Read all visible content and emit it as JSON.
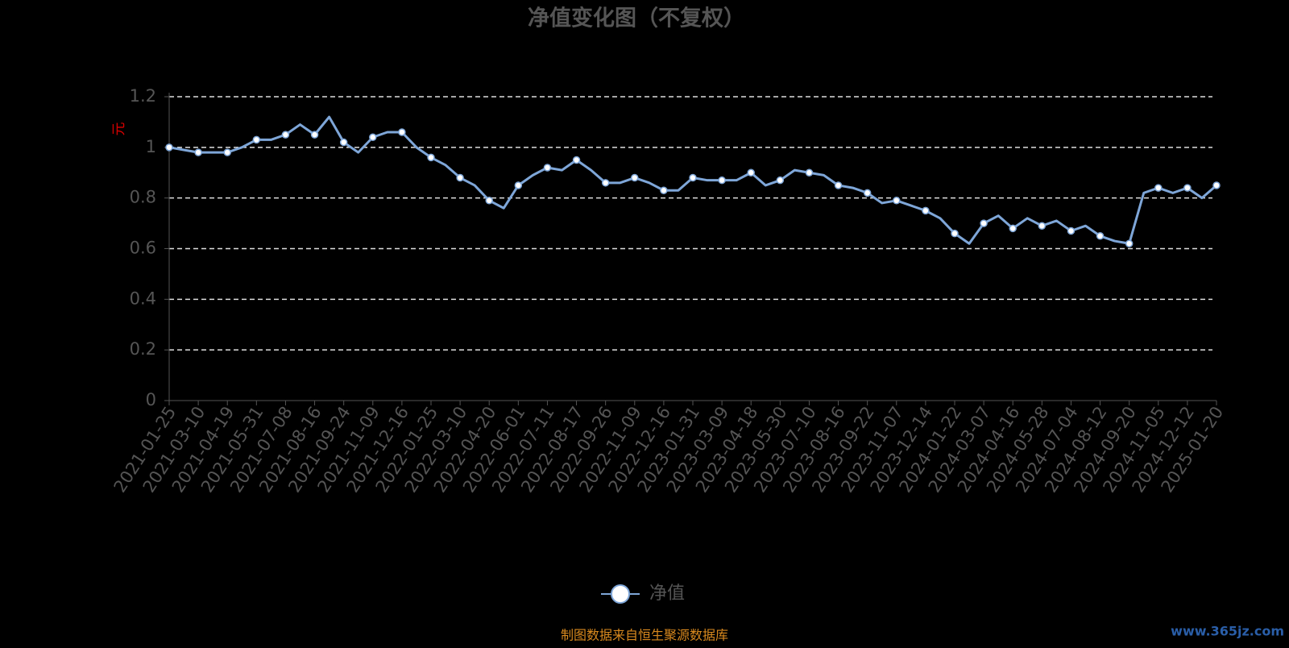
{
  "chart_data": {
    "type": "line",
    "title": "净值变化图（不复权）",
    "y_unit": "元",
    "categories": [
      "2021-01-25",
      null,
      "2021-03-10",
      null,
      "2021-04-19",
      null,
      "2021-05-31",
      null,
      "2021-07-08",
      null,
      "2021-08-16",
      null,
      "2021-09-24",
      null,
      "2021-11-09",
      null,
      "2021-12-16",
      null,
      "2022-01-25",
      null,
      "2022-03-10",
      null,
      "2022-04-20",
      null,
      "2022-06-01",
      null,
      "2022-07-11",
      null,
      "2022-08-17",
      null,
      "2022-09-26",
      null,
      "2022-11-09",
      null,
      "2022-12-16",
      null,
      "2023-01-31",
      null,
      "2023-03-09",
      null,
      "2023-04-18",
      null,
      "2023-05-30",
      null,
      "2023-07-10",
      null,
      "2023-08-16",
      null,
      "2023-09-22",
      null,
      "2023-11-07",
      null,
      "2023-12-14",
      null,
      "2024-01-22",
      null,
      "2024-03-07",
      null,
      "2024-04-16",
      null,
      "2024-05-28",
      null,
      "2024-07-04",
      null,
      "2024-08-12",
      null,
      "2024-09-20",
      null,
      "2024-11-05",
      null,
      "2024-12-12",
      null,
      "2025-01-20"
    ],
    "series": [
      {
        "name": "净值",
        "color": "#7ea6d8",
        "values": [
          1.0,
          0.99,
          0.98,
          0.98,
          0.98,
          1.0,
          1.03,
          1.03,
          1.05,
          1.09,
          1.05,
          1.12,
          1.02,
          0.98,
          1.04,
          1.06,
          1.06,
          1.0,
          0.96,
          0.93,
          0.88,
          0.85,
          0.79,
          0.76,
          0.85,
          0.89,
          0.92,
          0.91,
          0.95,
          0.91,
          0.86,
          0.86,
          0.88,
          0.86,
          0.83,
          0.83,
          0.88,
          0.87,
          0.87,
          0.87,
          0.9,
          0.85,
          0.87,
          0.91,
          0.9,
          0.89,
          0.85,
          0.84,
          0.82,
          0.78,
          0.79,
          0.77,
          0.75,
          0.72,
          0.66,
          0.62,
          0.7,
          0.73,
          0.68,
          0.72,
          0.69,
          0.71,
          0.67,
          0.69,
          0.65,
          0.63,
          0.62,
          0.82,
          0.84,
          0.82,
          0.84,
          0.8,
          0.85
        ]
      }
    ],
    "ylim": [
      0,
      1.2
    ],
    "yticks": [
      0,
      0.2,
      0.4,
      0.6,
      0.8,
      1,
      1.2
    ],
    "grid": true,
    "footer": "制图数据来自恒生聚源数据库",
    "watermark": "www.365jz.com"
  }
}
